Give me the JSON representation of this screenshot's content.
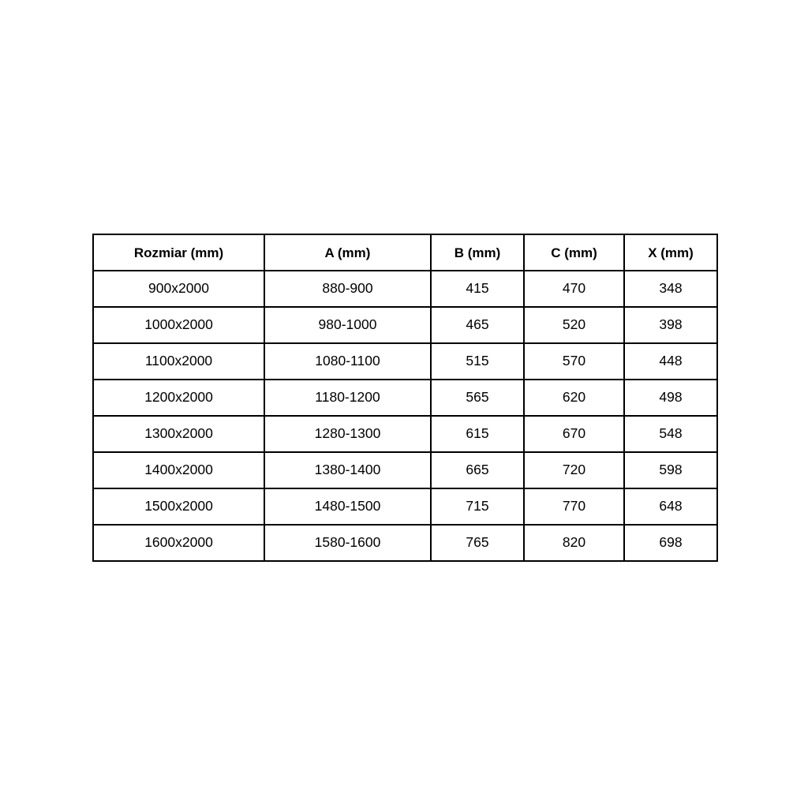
{
  "table": {
    "headers": [
      "Rozmiar (mm)",
      "A (mm)",
      "B (mm)",
      "C (mm)",
      "X (mm)"
    ],
    "rows": [
      [
        "900x2000",
        "880-900",
        "415",
        "470",
        "348"
      ],
      [
        "1000x2000",
        "980-1000",
        "465",
        "520",
        "398"
      ],
      [
        "1100x2000",
        "1080-1100",
        "515",
        "570",
        "448"
      ],
      [
        "1200x2000",
        "1180-1200",
        "565",
        "620",
        "498"
      ],
      [
        "1300x2000",
        "1280-1300",
        "615",
        "670",
        "548"
      ],
      [
        "1400x2000",
        "1380-1400",
        "665",
        "720",
        "598"
      ],
      [
        "1500x2000",
        "1480-1500",
        "715",
        "770",
        "648"
      ],
      [
        "1600x2000",
        "1580-1600",
        "765",
        "820",
        "698"
      ]
    ],
    "border_color": "#000000",
    "background_color": "#ffffff"
  }
}
